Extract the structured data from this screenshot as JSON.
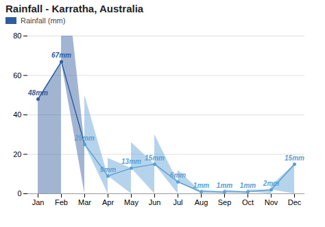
{
  "chart_data": {
    "type": "area",
    "title": "Rainfall - Karratha, Australia",
    "categories": [
      "Jan",
      "Feb",
      "Mar",
      "Apr",
      "May",
      "Jun",
      "Jul",
      "Aug",
      "Sep",
      "Oct",
      "Nov",
      "Dec"
    ],
    "series": [
      {
        "name": "Rainfall (mm)",
        "color": "#2e5c9e",
        "values": [
          48,
          67,
          25,
          9,
          13,
          15,
          6,
          1,
          1,
          1,
          2,
          15
        ],
        "value_labels": [
          "48mm",
          "67mm",
          "25mm",
          "9mm",
          "13mm",
          "15mm",
          "6mm",
          "1mm",
          "1mm",
          "1mm",
          "2mm",
          "15mm"
        ],
        "colors": [
          "#2e5c9e",
          "#2e5c9e",
          "#5a9fd4",
          "#5a9fd4",
          "#5a9fd4",
          "#5a9fd4",
          "#5a9fd4",
          "#5a9fd4",
          "#5a9fd4",
          "#5a9fd4",
          "#5a9fd4",
          "#5a9fd4"
        ]
      }
    ],
    "ylim": [
      0,
      80
    ],
    "yticks": [
      0,
      20,
      40,
      60,
      80
    ],
    "grid": true,
    "data_labels": true,
    "legend": "upper left"
  }
}
